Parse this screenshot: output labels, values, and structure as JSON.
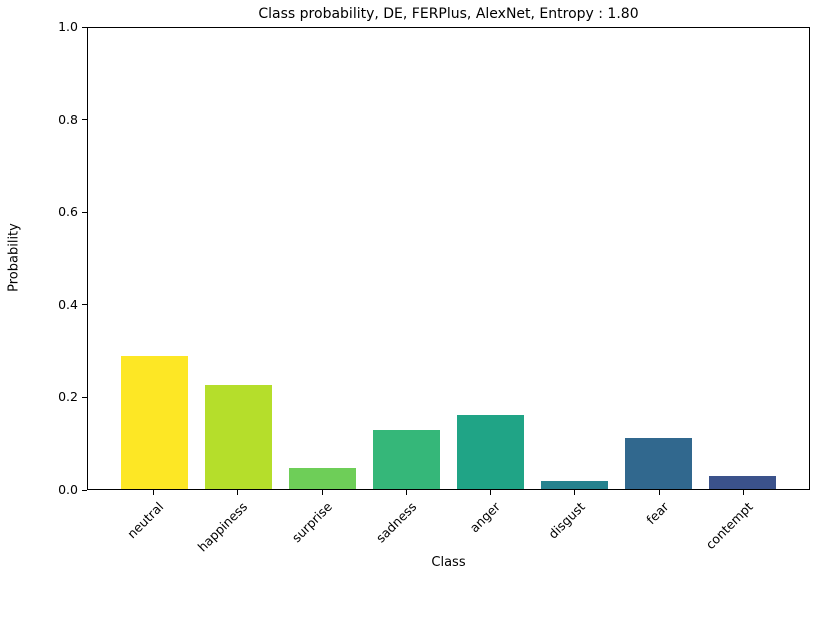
{
  "chart_data": {
    "type": "bar",
    "title": "Class probability, DE, FERPlus, AlexNet, Entropy : 1.80",
    "xlabel": "Class",
    "ylabel": "Probability",
    "categories": [
      "neutral",
      "happiness",
      "surprise",
      "sadness",
      "anger",
      "disgust",
      "fear",
      "contempt"
    ],
    "values": [
      0.288,
      0.226,
      0.045,
      0.127,
      0.161,
      0.017,
      0.11,
      0.028
    ],
    "bar_colors": [
      "#fde725",
      "#b5de2b",
      "#6ece58",
      "#35b779",
      "#20a486",
      "#26828e",
      "#31688e",
      "#3b528b"
    ],
    "ylim": [
      0,
      1
    ],
    "yticks": [
      0.0,
      0.2,
      0.4,
      0.6,
      0.8,
      1.0
    ],
    "ytick_labels": [
      "0.0",
      "0.2",
      "0.4",
      "0.6",
      "0.8",
      "1.0"
    ],
    "bar_width_units": 0.8,
    "xlim": [
      -0.79,
      7.79
    ],
    "x_tick_rotation_deg": 45,
    "grid": false,
    "legend": null,
    "background_color": "#ffffff",
    "spine_color": "#000000"
  }
}
